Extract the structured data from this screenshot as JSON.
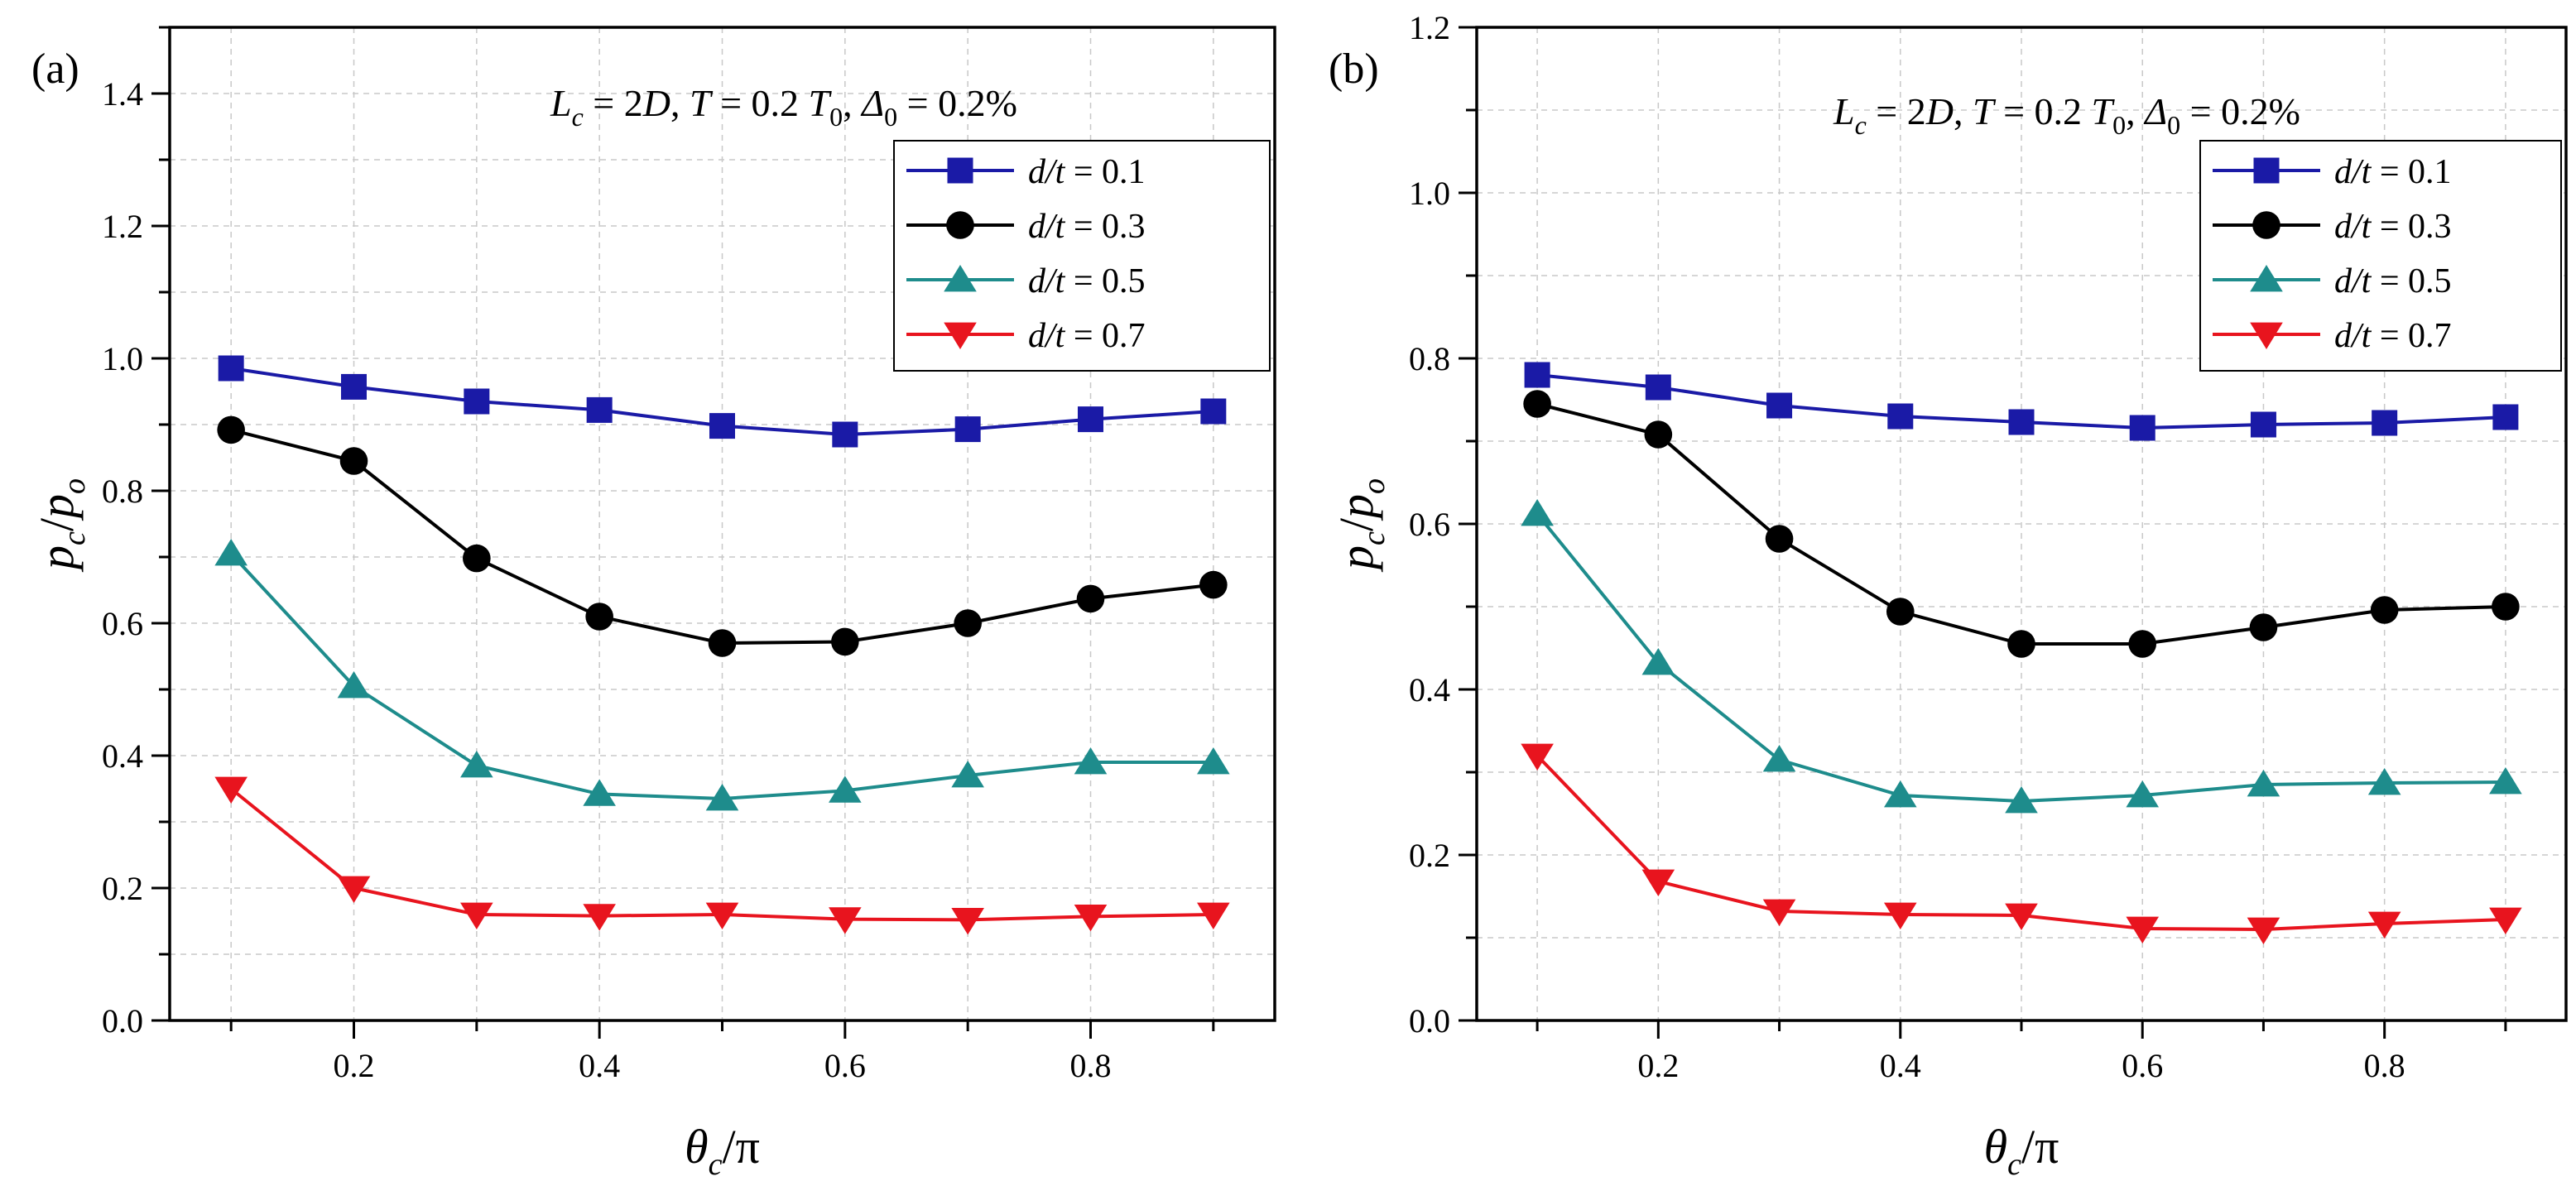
{
  "figure": {
    "panel_labels": [
      "(a)",
      "(b)"
    ],
    "params_text": [
      "L",
      "c",
      " = 2",
      "D",
      ",  ",
      "T",
      " = 0.2 ",
      "T",
      "0",
      ", ",
      "Δ",
      "0",
      " = 0.2%"
    ],
    "xlabel_parts": [
      "θ",
      "c",
      "/π"
    ],
    "ylabel_parts": [
      "p",
      "c",
      "/",
      "p",
      "o"
    ]
  },
  "colors": {
    "d01": "#1a1aa6",
    "d03": "#000000",
    "d05": "#1e8c8c",
    "d07": "#e8141e",
    "grid": "#c8c8c8"
  },
  "chart_data": [
    {
      "type": "line",
      "panel": "(a)",
      "title": "L_c = 2D, T = 0.2 T_0, Δ_0 = 0.2%",
      "xlabel": "θ_c/π",
      "ylabel": "p_c/p_o",
      "xlim": [
        0.05,
        0.95
      ],
      "ylim": [
        0.0,
        1.5
      ],
      "xticks": [
        0.2,
        0.4,
        0.6,
        0.8
      ],
      "xtick_labels": [
        "0.2",
        "0.4",
        "0.6",
        "0.8"
      ],
      "yticks": [
        0.0,
        0.2,
        0.4,
        0.6,
        0.8,
        1.0,
        1.2,
        1.4
      ],
      "ytick_labels": [
        "0.0",
        "0.2",
        "0.4",
        "0.6",
        "0.8",
        "1.0",
        "1.2",
        "1.4"
      ],
      "grid": true,
      "legend_position": "top-right",
      "x": [
        0.1,
        0.2,
        0.3,
        0.4,
        0.5,
        0.6,
        0.7,
        0.8,
        0.9
      ],
      "series": [
        {
          "key": "d01",
          "label_prefix": "d/t",
          "label_value": " = 0.1",
          "marker": "square",
          "values": [
            0.985,
            0.957,
            0.935,
            0.922,
            0.898,
            0.885,
            0.893,
            0.908,
            0.92
          ]
        },
        {
          "key": "d03",
          "label_prefix": "d/t",
          "label_value": " = 0.3",
          "marker": "circle",
          "values": [
            0.892,
            0.845,
            0.698,
            0.61,
            0.57,
            0.572,
            0.6,
            0.637,
            0.658
          ]
        },
        {
          "key": "d05",
          "label_prefix": "d/t",
          "label_value": " = 0.5",
          "marker": "triangle-up",
          "values": [
            0.705,
            0.505,
            0.385,
            0.342,
            0.335,
            0.347,
            0.37,
            0.39,
            0.39
          ]
        },
        {
          "key": "d07",
          "label_prefix": "d/t",
          "label_value": " = 0.7",
          "marker": "triangle-down",
          "values": [
            0.35,
            0.2,
            0.16,
            0.158,
            0.16,
            0.153,
            0.152,
            0.157,
            0.16
          ]
        }
      ]
    },
    {
      "type": "line",
      "panel": "(b)",
      "title": "L_c = 2D, T = 0.2 T_0, Δ_0 = 0.2%",
      "xlabel": "θ_c/π",
      "ylabel": "p_c/p_o",
      "xlim": [
        0.05,
        0.95
      ],
      "ylim": [
        0.0,
        1.2
      ],
      "xticks": [
        0.2,
        0.4,
        0.6,
        0.8
      ],
      "xtick_labels": [
        "0.2",
        "0.4",
        "0.6",
        "0.8"
      ],
      "yticks": [
        0.0,
        0.2,
        0.4,
        0.6,
        0.8,
        1.0,
        1.2
      ],
      "ytick_labels": [
        "0.0",
        "0.2",
        "0.4",
        "0.6",
        "0.8",
        "1.0",
        "1.2"
      ],
      "grid": true,
      "legend_position": "top-right",
      "x": [
        0.1,
        0.2,
        0.3,
        0.4,
        0.5,
        0.6,
        0.7,
        0.8,
        0.9
      ],
      "series": [
        {
          "key": "d01",
          "label_prefix": "d/t",
          "label_value": " = 0.1",
          "marker": "square",
          "values": [
            0.78,
            0.765,
            0.743,
            0.73,
            0.723,
            0.716,
            0.72,
            0.722,
            0.729
          ]
        },
        {
          "key": "d03",
          "label_prefix": "d/t",
          "label_value": " = 0.3",
          "marker": "circle",
          "values": [
            0.745,
            0.708,
            0.582,
            0.494,
            0.455,
            0.455,
            0.475,
            0.496,
            0.5
          ]
        },
        {
          "key": "d05",
          "label_prefix": "d/t",
          "label_value": " = 0.5",
          "marker": "triangle-up",
          "values": [
            0.612,
            0.432,
            0.315,
            0.272,
            0.265,
            0.272,
            0.285,
            0.287,
            0.288
          ]
        },
        {
          "key": "d07",
          "label_prefix": "d/t",
          "label_value": " = 0.7",
          "marker": "triangle-down",
          "values": [
            0.32,
            0.168,
            0.132,
            0.128,
            0.127,
            0.111,
            0.11,
            0.117,
            0.122
          ]
        }
      ]
    }
  ]
}
